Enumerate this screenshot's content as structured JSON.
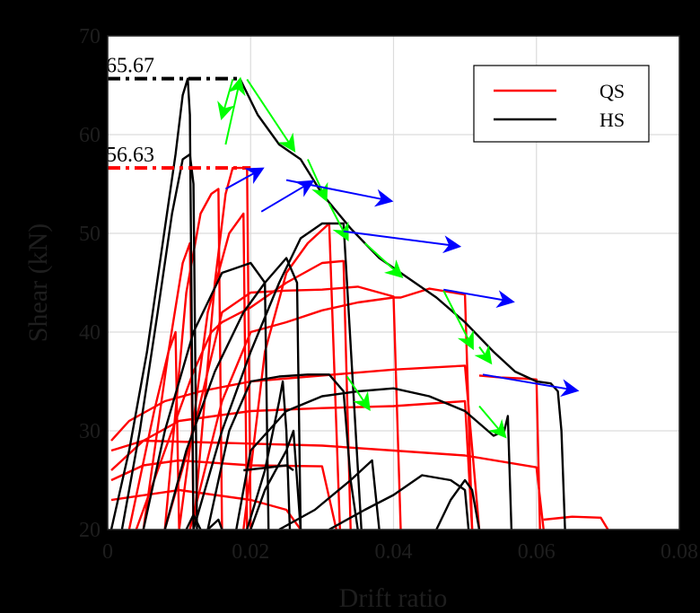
{
  "chart_data": {
    "type": "line",
    "xlabel": "Drift ratio",
    "ylabel": "Shear (kN)",
    "xlim": [
      0,
      0.08
    ],
    "ylim": [
      20,
      70
    ],
    "xticks": [
      0,
      0.02,
      0.04,
      0.06,
      0.08
    ],
    "xtick_labels": [
      "0",
      "0.02",
      "0.04",
      "0.06",
      "0.08"
    ],
    "yticks": [
      20,
      30,
      40,
      50,
      60,
      70
    ],
    "ytick_labels": [
      "20",
      "30",
      "40",
      "50",
      "60",
      "70"
    ],
    "grid": true,
    "legend": {
      "placement": "top-right",
      "entries": [
        {
          "label": "QS",
          "color": "#ff0000"
        },
        {
          "label": "HS",
          "color": "#000000"
        }
      ]
    },
    "peak_annotations": [
      {
        "label": "65.67",
        "value": 65.67,
        "x_end": 0.0185,
        "color": "#000000"
      },
      {
        "label": "56.63",
        "value": 56.63,
        "x_end": 0.02,
        "color": "#ff0000"
      }
    ],
    "series": [
      {
        "name": "QS",
        "color": "#ff0000",
        "curves": [
          [
            [
              0.004,
              20
            ],
            [
              0.008,
              28
            ],
            [
              0.012,
              36
            ],
            [
              0.0145,
              40
            ],
            [
              0.016,
              41
            ],
            [
              0.02,
              42.5
            ],
            [
              0.025,
              45
            ],
            [
              0.03,
              47
            ],
            [
              0.033,
              47.2
            ],
            [
              0.034,
              20
            ]
          ],
          [
            [
              0.008,
              20
            ],
            [
              0.012,
              30
            ],
            [
              0.016,
              42
            ],
            [
              0.02,
              44
            ],
            [
              0.025,
              44.2
            ],
            [
              0.03,
              44.3
            ],
            [
              0.035,
              44.6
            ],
            [
              0.04,
              43.6
            ],
            [
              0.041,
              20
            ]
          ],
          [
            [
              0.0115,
              20
            ],
            [
              0.016,
              33
            ],
            [
              0.02,
              40
            ],
            [
              0.025,
              41
            ],
            [
              0.03,
              42.2
            ],
            [
              0.035,
              43
            ],
            [
              0.04,
              43.5
            ],
            [
              0.041,
              43.5
            ],
            [
              0.045,
              44.4
            ],
            [
              0.05,
              43.8
            ],
            [
              0.051,
              20
            ]
          ],
          [
            [
              0.0005,
              26
            ],
            [
              0.005,
              29
            ],
            [
              0.01,
              31
            ],
            [
              0.015,
              31.5
            ],
            [
              0.02,
              32
            ],
            [
              0.03,
              32.3
            ],
            [
              0.04,
              32.5
            ],
            [
              0.05,
              33
            ],
            [
              0.051,
              20
            ]
          ],
          [
            [
              0.0005,
              29
            ],
            [
              0.003,
              31
            ],
            [
              0.008,
              33
            ],
            [
              0.013,
              34
            ],
            [
              0.02,
              35
            ],
            [
              0.03,
              35.6
            ],
            [
              0.04,
              36.2
            ],
            [
              0.05,
              36.6
            ],
            [
              0.052,
              20
            ]
          ],
          [
            [
              0.0005,
              25
            ],
            [
              0.005,
              26.5
            ],
            [
              0.01,
              27
            ],
            [
              0.02,
              26.5
            ],
            [
              0.03,
              26.4
            ],
            [
              0.032,
              20
            ]
          ],
          [
            [
              0.0005,
              23
            ],
            [
              0.01,
              24
            ],
            [
              0.02,
              23
            ],
            [
              0.025,
              22
            ],
            [
              0.027,
              20
            ]
          ],
          [
            [
              0.052,
              35.6
            ],
            [
              0.055,
              35.4
            ],
            [
              0.058,
              35.3
            ],
            [
              0.06,
              35.2
            ],
            [
              0.0605,
              20
            ]
          ],
          [
            [
              0.061,
              21
            ],
            [
              0.065,
              21.3
            ],
            [
              0.069,
              21.2
            ],
            [
              0.07,
              20
            ]
          ],
          [
            [
              0.0005,
              28
            ],
            [
              0.005,
              29
            ],
            [
              0.02,
              28.7
            ],
            [
              0.03,
              28.5
            ],
            [
              0.04,
              28
            ],
            [
              0.05,
              27.5
            ],
            [
              0.06,
              26.3
            ],
            [
              0.061,
              20
            ]
          ],
          [
            [
              0.012,
              20
            ],
            [
              0.015,
              45
            ],
            [
              0.0165,
              54
            ],
            [
              0.0175,
              56.63
            ],
            [
              0.0195,
              56.63
            ],
            [
              0.02,
              20
            ]
          ],
          [
            [
              0.008,
              20
            ],
            [
              0.011,
              44
            ],
            [
              0.013,
              52
            ],
            [
              0.0145,
              54
            ],
            [
              0.0155,
              54.5
            ],
            [
              0.016,
              20
            ]
          ],
          [
            [
              0.005,
              20
            ],
            [
              0.0085,
              38
            ],
            [
              0.0105,
              47
            ],
            [
              0.0115,
              49
            ],
            [
              0.012,
              20
            ]
          ],
          [
            [
              0.003,
              20
            ],
            [
              0.0065,
              32
            ],
            [
              0.0085,
              38
            ],
            [
              0.0095,
              40
            ],
            [
              0.01,
              20
            ]
          ],
          [
            [
              0.019,
              20
            ],
            [
              0.022,
              38
            ],
            [
              0.025,
              46
            ],
            [
              0.028,
              49
            ],
            [
              0.031,
              51
            ],
            [
              0.0325,
              20
            ]
          ],
          [
            [
              0.01,
              20
            ],
            [
              0.014,
              42
            ],
            [
              0.017,
              50
            ],
            [
              0.019,
              52
            ],
            [
              0.0195,
              20
            ]
          ],
          [
            [
              0.0005,
              20
            ],
            [
              0.001,
              19
            ]
          ]
        ]
      },
      {
        "name": "HS",
        "color": "#000000",
        "curves": [
          [
            [
              0.0005,
              20
            ],
            [
              0.003,
              28
            ],
            [
              0.0055,
              38
            ],
            [
              0.0075,
              48
            ],
            [
              0.0095,
              58
            ],
            [
              0.0105,
              64
            ],
            [
              0.0112,
              65.67
            ],
            [
              0.0115,
              62
            ],
            [
              0.012,
              20
            ]
          ],
          [
            [
              0.002,
              20
            ],
            [
              0.0045,
              30
            ],
            [
              0.007,
              42
            ],
            [
              0.009,
              52
            ],
            [
              0.0105,
              57.5
            ],
            [
              0.0115,
              58
            ],
            [
              0.012,
              55
            ],
            [
              0.0125,
              20
            ]
          ],
          [
            [
              0.005,
              20
            ],
            [
              0.008,
              30
            ],
            [
              0.012,
              40
            ],
            [
              0.016,
              46
            ],
            [
              0.02,
              47
            ],
            [
              0.022,
              45
            ],
            [
              0.0225,
              20
            ]
          ],
          [
            [
              0.008,
              20
            ],
            [
              0.011,
              28
            ],
            [
              0.015,
              36
            ],
            [
              0.019,
              42
            ],
            [
              0.022,
              45
            ],
            [
              0.025,
              47.5
            ],
            [
              0.0265,
              45
            ],
            [
              0.027,
              20
            ]
          ],
          [
            [
              0.012,
              20
            ],
            [
              0.016,
              30
            ],
            [
              0.02,
              38
            ],
            [
              0.024,
              45
            ],
            [
              0.027,
              49.5
            ],
            [
              0.03,
              51
            ],
            [
              0.033,
              51
            ],
            [
              0.0355,
              20
            ]
          ],
          [
            [
              0.014,
              20
            ],
            [
              0.017,
              30
            ],
            [
              0.02,
              35
            ],
            [
              0.024,
              35.5
            ],
            [
              0.028,
              35.7
            ],
            [
              0.031,
              35.7
            ],
            [
              0.033,
              34
            ],
            [
              0.034,
              25
            ],
            [
              0.035,
              20
            ]
          ],
          [
            [
              0.018,
              20
            ],
            [
              0.02,
              28
            ],
            [
              0.025,
              32
            ],
            [
              0.03,
              33.5
            ],
            [
              0.035,
              34
            ],
            [
              0.04,
              34.3
            ],
            [
              0.045,
              33.5
            ],
            [
              0.05,
              32
            ],
            [
              0.054,
              29.5
            ],
            [
              0.0555,
              30
            ],
            [
              0.056,
              31.5
            ],
            [
              0.0565,
              20
            ]
          ],
          [
            [
              0.02,
              20
            ],
            [
              0.022,
              24
            ],
            [
              0.025,
              28
            ],
            [
              0.026,
              30
            ],
            [
              0.027,
              20
            ]
          ],
          [
            [
              0.024,
              20
            ],
            [
              0.029,
              22
            ],
            [
              0.034,
              25
            ],
            [
              0.037,
              27
            ],
            [
              0.038,
              20
            ]
          ],
          [
            [
              0.031,
              20
            ],
            [
              0.036,
              22
            ],
            [
              0.04,
              23.5
            ],
            [
              0.044,
              25.5
            ],
            [
              0.048,
              25
            ],
            [
              0.05,
              24
            ],
            [
              0.0505,
              20
            ]
          ],
          [
            [
              0.0195,
              20
            ],
            [
              0.022,
              26
            ],
            [
              0.024,
              33
            ],
            [
              0.0245,
              35
            ],
            [
              0.025,
              30
            ],
            [
              0.0255,
              20
            ]
          ],
          [
            [
              0.046,
              20
            ],
            [
              0.048,
              23
            ],
            [
              0.05,
              25
            ],
            [
              0.051,
              24
            ],
            [
              0.052,
              20
            ]
          ],
          [
            [
              0.0185,
              65.67
            ],
            [
              0.021,
              62
            ],
            [
              0.024,
              59
            ],
            [
              0.027,
              57.5
            ],
            [
              0.03,
              54
            ],
            [
              0.034,
              50.5
            ],
            [
              0.038,
              47.5
            ],
            [
              0.042,
              45.5
            ],
            [
              0.046,
              43.5
            ],
            [
              0.05,
              41
            ],
            [
              0.054,
              38
            ],
            [
              0.057,
              36
            ],
            [
              0.06,
              35
            ],
            [
              0.062,
              34.8
            ],
            [
              0.063,
              34
            ],
            [
              0.0635,
              30
            ],
            [
              0.064,
              20
            ]
          ],
          [
            [
              0.011,
              20
            ],
            [
              0.012,
              21.5
            ],
            [
              0.013,
              20
            ]
          ],
          [
            [
              0.014,
              20
            ],
            [
              0.0155,
              21
            ],
            [
              0.016,
              20
            ]
          ],
          [
            [
              0.019,
              26
            ],
            [
              0.025,
              26.5
            ],
            [
              0.026,
              26
            ]
          ]
        ]
      }
    ],
    "annotation_arrows": {
      "green": [
        [
          [
            0.0165,
            59
          ],
          [
            0.0185,
            65.5
          ]
        ],
        [
          [
            0.0175,
            65.6
          ],
          [
            0.016,
            61.8
          ]
        ],
        [
          [
            0.0195,
            65.6
          ],
          [
            0.026,
            58.5
          ]
        ],
        [
          [
            0.028,
            57.5
          ],
          [
            0.0305,
            53.5
          ]
        ],
        [
          [
            0.031,
            53
          ],
          [
            0.0335,
            49.5
          ]
        ],
        [
          [
            0.036,
            49
          ],
          [
            0.041,
            45.7
          ]
        ],
        [
          [
            0.047,
            44.2
          ],
          [
            0.051,
            38.5
          ]
        ],
        [
          [
            0.052,
            38.5
          ],
          [
            0.0535,
            37
          ]
        ],
        [
          [
            0.0335,
            35.5
          ],
          [
            0.0365,
            32.3
          ]
        ],
        [
          [
            0.052,
            32.5
          ],
          [
            0.0555,
            29.5
          ]
        ]
      ],
      "blue": [
        [
          [
            0.0165,
            54.5
          ],
          [
            0.0215,
            56.5
          ]
        ],
        [
          [
            0.0215,
            52.2
          ],
          [
            0.0285,
            55.2
          ]
        ],
        [
          [
            0.025,
            55.4
          ],
          [
            0.0395,
            53.3
          ]
        ],
        [
          [
            0.033,
            50.2
          ],
          [
            0.049,
            48.7
          ]
        ],
        [
          [
            0.047,
            44.3
          ],
          [
            0.0565,
            43.1
          ]
        ],
        [
          [
            0.0525,
            35.7
          ],
          [
            0.0655,
            34.1
          ]
        ]
      ]
    }
  }
}
